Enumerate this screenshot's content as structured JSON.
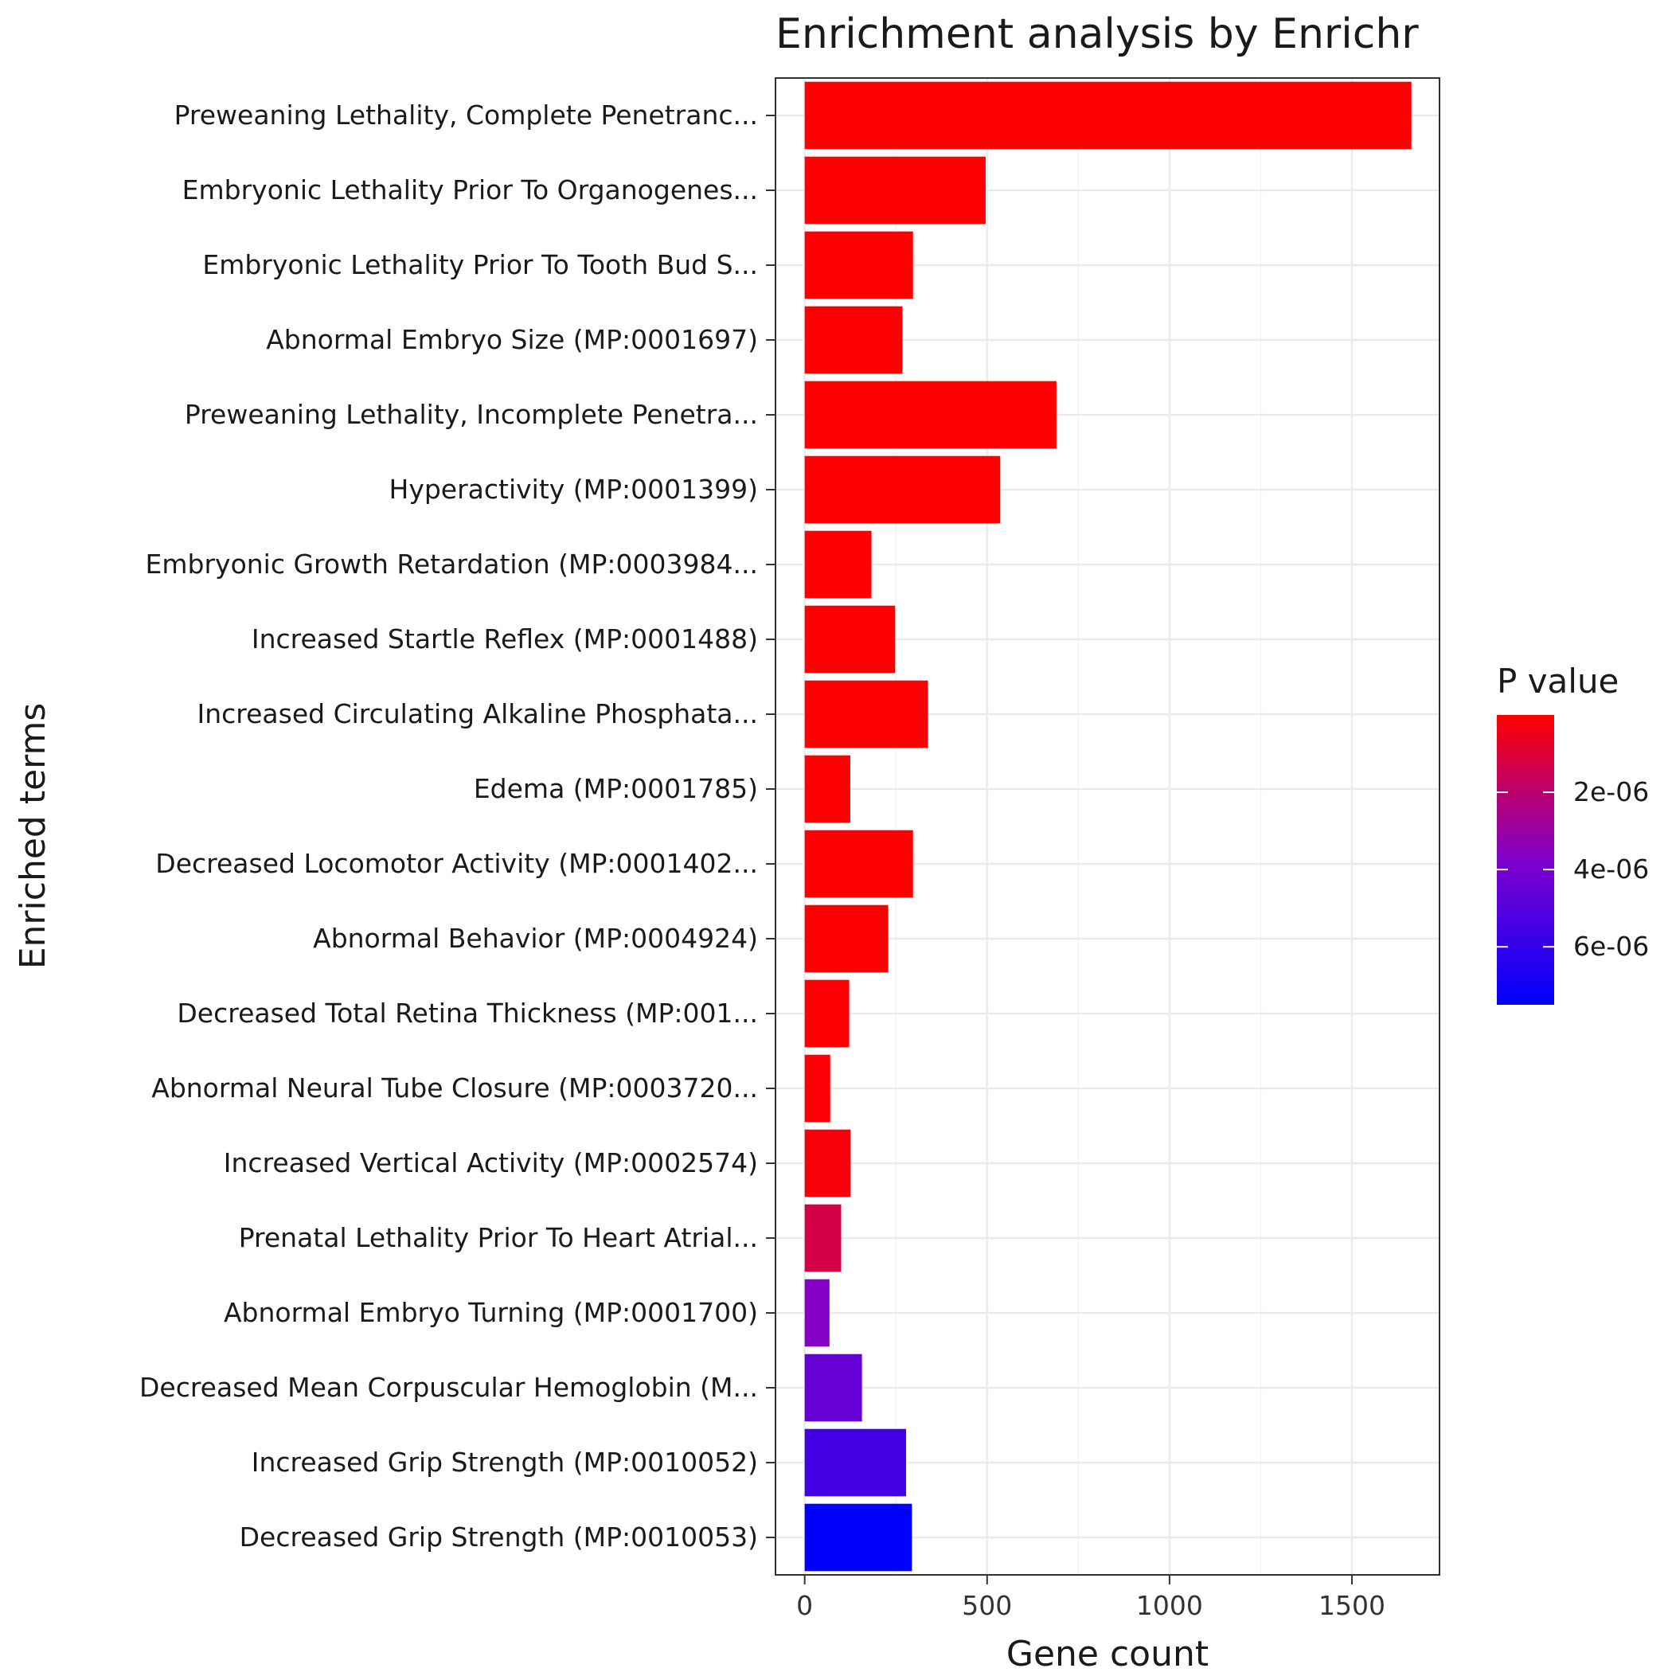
{
  "chart_data": {
    "type": "bar",
    "orientation": "horizontal",
    "title": "Enrichment analysis by Enrichr",
    "xlabel": "Gene count",
    "ylabel": "Enriched terms",
    "xlim": [
      -80,
      1740
    ],
    "xticks": [
      0,
      500,
      1000,
      1500
    ],
    "grid": true,
    "categories": [
      "Preweaning Lethality, Complete Penetranc...",
      "Embryonic Lethality Prior To Organogenes...",
      "Embryonic Lethality Prior To Tooth Bud S...",
      "Abnormal Embryo Size (MP:0001697)",
      "Preweaning Lethality, Incomplete Penetra...",
      "Hyperactivity (MP:0001399)",
      "Embryonic Growth Retardation (MP:0003984...",
      "Increased Startle Reflex (MP:0001488)",
      "Increased Circulating Alkaline Phosphata...",
      "Edema (MP:0001785)",
      "Decreased Locomotor Activity (MP:0001402...",
      "Abnormal Behavior (MP:0004924)",
      "Decreased Total Retina Thickness (MP:001...",
      "Abnormal Neural Tube Closure (MP:0003720...",
      "Increased Vertical Activity (MP:0002574)",
      "Prenatal Lethality Prior To Heart Atrial...",
      "Abnormal Embryo Turning (MP:0001700)",
      "Decreased Mean Corpuscular Hemoglobin (M...",
      "Increased Grip Strength (MP:0010052)",
      "Decreased Grip Strength (MP:0010053)"
    ],
    "values": [
      1663,
      496,
      297,
      268,
      690,
      536,
      183,
      248,
      338,
      125,
      297,
      229,
      122,
      70,
      126,
      100,
      68,
      157,
      278,
      294
    ],
    "p_values": [
      1e-10,
      1e-10,
      2e-10,
      3e-10,
      4e-10,
      6e-10,
      1e-09,
      2e-09,
      4e-09,
      8e-09,
      1e-08,
      2e-08,
      5e-08,
      1e-07,
      2e-07,
      1.3e-06,
      3.6e-06,
      4.5e-06,
      5.5e-06,
      7.5e-06
    ],
    "legend": {
      "title": "P value",
      "placement": "right",
      "ticks": [
        "2e-06",
        "4e-06",
        "6e-06"
      ],
      "tick_values": [
        2e-06,
        4e-06,
        6e-06
      ],
      "range": [
        1e-10,
        7.5e-06
      ],
      "low_color": "#ff0000",
      "high_color": "#0000ff"
    }
  }
}
